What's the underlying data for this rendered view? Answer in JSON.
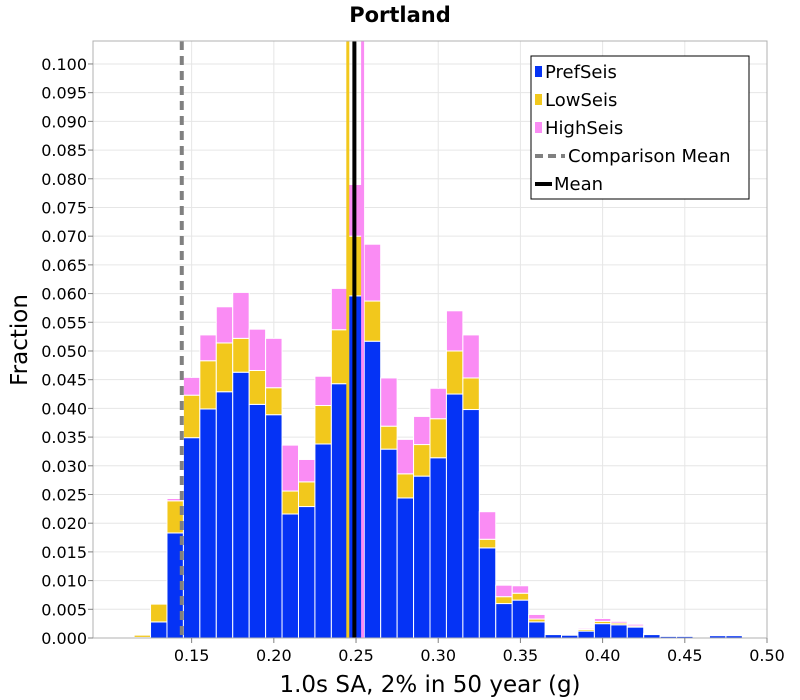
{
  "chart_data": {
    "type": "bar",
    "stacked": true,
    "title": "Portland",
    "xlabel": "1.0s SA, 2% in 50 year (g)",
    "ylabel": "Fraction",
    "xlim": [
      0.09,
      0.5
    ],
    "ylim": [
      0,
      0.104
    ],
    "bin_width": 0.01,
    "x_ticks": [
      "0.15",
      "0.20",
      "0.25",
      "0.30",
      "0.35",
      "0.40",
      "0.45",
      "0.50"
    ],
    "y_ticks": [
      "0.000",
      "0.005",
      "0.010",
      "0.015",
      "0.020",
      "0.025",
      "0.030",
      "0.035",
      "0.040",
      "0.045",
      "0.050",
      "0.055",
      "0.060",
      "0.065",
      "0.070",
      "0.075",
      "0.080",
      "0.085",
      "0.090",
      "0.095",
      "0.100"
    ],
    "grid": true,
    "legend_position": "top-right",
    "x": [
      0.12,
      0.13,
      0.14,
      0.15,
      0.16,
      0.17,
      0.18,
      0.19,
      0.2,
      0.21,
      0.22,
      0.23,
      0.24,
      0.25,
      0.26,
      0.27,
      0.28,
      0.29,
      0.3,
      0.31,
      0.32,
      0.33,
      0.34,
      0.35,
      0.36,
      0.37,
      0.38,
      0.39,
      0.4,
      0.41,
      0.42,
      0.43,
      0.44,
      0.45,
      0.46,
      0.47,
      0.48
    ],
    "series": [
      {
        "name": "PrefSeis",
        "color": "#0533f5",
        "values": [
          0.0001,
          0.0028,
          0.0183,
          0.0349,
          0.0399,
          0.0429,
          0.0463,
          0.0407,
          0.0389,
          0.0216,
          0.0229,
          0.0338,
          0.0443,
          0.0596,
          0.0517,
          0.0329,
          0.0244,
          0.0282,
          0.0314,
          0.0425,
          0.0398,
          0.0157,
          0.006,
          0.0066,
          0.0028,
          0.0006,
          0.0005,
          0.0012,
          0.0025,
          0.0023,
          0.0019,
          0.0006,
          0.0003,
          0.0003,
          0,
          0.0004,
          0.0004
        ]
      },
      {
        "name": "LowSeis",
        "color": "#f2c81c",
        "values": [
          0.0004,
          0.0031,
          0.0056,
          0.0074,
          0.0084,
          0.0085,
          0.0059,
          0.0059,
          0.0047,
          0.004,
          0.0043,
          0.0067,
          0.0094,
          0.0104,
          0.007,
          0.004,
          0.0042,
          0.0055,
          0.0068,
          0.0075,
          0.0055,
          0.0015,
          0.0012,
          0.0012,
          0.0005,
          0.0001,
          0.0001,
          0.0003,
          0.0004,
          0.0003,
          0.0002,
          0.0001,
          0,
          0,
          0,
          0,
          0
        ]
      },
      {
        "name": "HighSeis",
        "color": "#fa8cf4",
        "values": [
          0,
          0,
          0.0004,
          0.0031,
          0.0045,
          0.0063,
          0.008,
          0.0072,
          0.0086,
          0.008,
          0.0039,
          0.0051,
          0.0072,
          0.009,
          0.0099,
          0.0084,
          0.006,
          0.0049,
          0.0053,
          0.007,
          0.0075,
          0.0048,
          0.002,
          0.0013,
          0.0008,
          0.0001,
          0.0001,
          0.0002,
          0.0005,
          0.0003,
          0.0003,
          0.0001,
          0.0001,
          0.0001,
          0,
          0,
          0
        ]
      }
    ],
    "reference_lines": [
      {
        "name": "Comparison Mean",
        "x": 0.144,
        "color": "#808080",
        "style": "dashed"
      },
      {
        "name": "Mean",
        "x": 0.249,
        "color": "#000000",
        "style": "solid"
      },
      {
        "name": "LowSeis Mean",
        "x": 0.245,
        "color": "#f2c81c",
        "style": "solid"
      },
      {
        "name": "HighSeis Mean",
        "x": 0.254,
        "color": "#fa8cf4",
        "style": "solid"
      }
    ],
    "legend": [
      {
        "label": "PrefSeis",
        "kind": "square",
        "color": "#0533f5"
      },
      {
        "label": "LowSeis",
        "kind": "square",
        "color": "#f2c81c"
      },
      {
        "label": "HighSeis",
        "kind": "square",
        "color": "#fa8cf4"
      },
      {
        "label": "Comparison Mean",
        "kind": "dashed",
        "color": "#808080"
      },
      {
        "label": "Mean",
        "kind": "solid",
        "color": "#000000"
      }
    ]
  }
}
